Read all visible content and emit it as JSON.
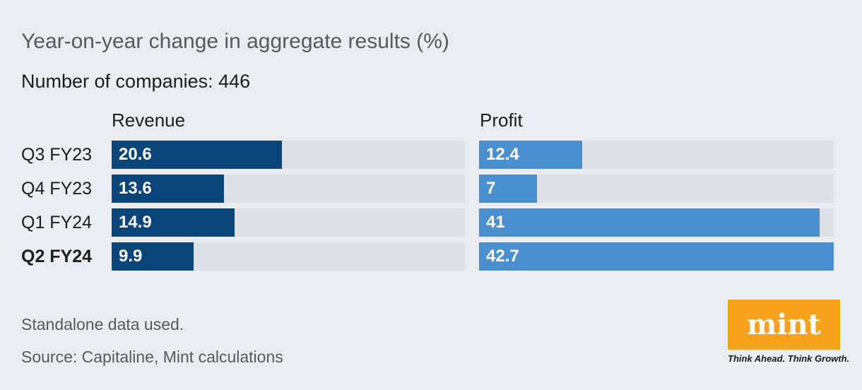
{
  "chart_data": {
    "type": "bar",
    "title": "Year-on-year change in aggregate results (%)",
    "subtitle": "Number of companies: 446",
    "categories": [
      "Q3 FY23",
      "Q4 FY23",
      "Q1 FY24",
      "Q2 FY24"
    ],
    "highlight_category": "Q2 FY24",
    "series": [
      {
        "name": "Revenue",
        "values": [
          20.6,
          13.6,
          14.9,
          9.9
        ],
        "color": "#0b4477",
        "max": 42.7
      },
      {
        "name": "Profit",
        "values": [
          12.4,
          7,
          41,
          42.7
        ],
        "color": "#4a90cf",
        "max": 42.7
      }
    ],
    "value_labels": {
      "revenue": [
        "20.6",
        "13.6",
        "14.9",
        "9.9"
      ],
      "profit": [
        "12.4",
        "7",
        "41",
        "42.7"
      ]
    },
    "notes": [
      "Standalone data used.",
      "Source: Capitaline, Mint calculations"
    ]
  },
  "brand": {
    "logo_text": "mint",
    "tagline": "Think Ahead. Think Growth.",
    "color": "#f7a21c"
  }
}
